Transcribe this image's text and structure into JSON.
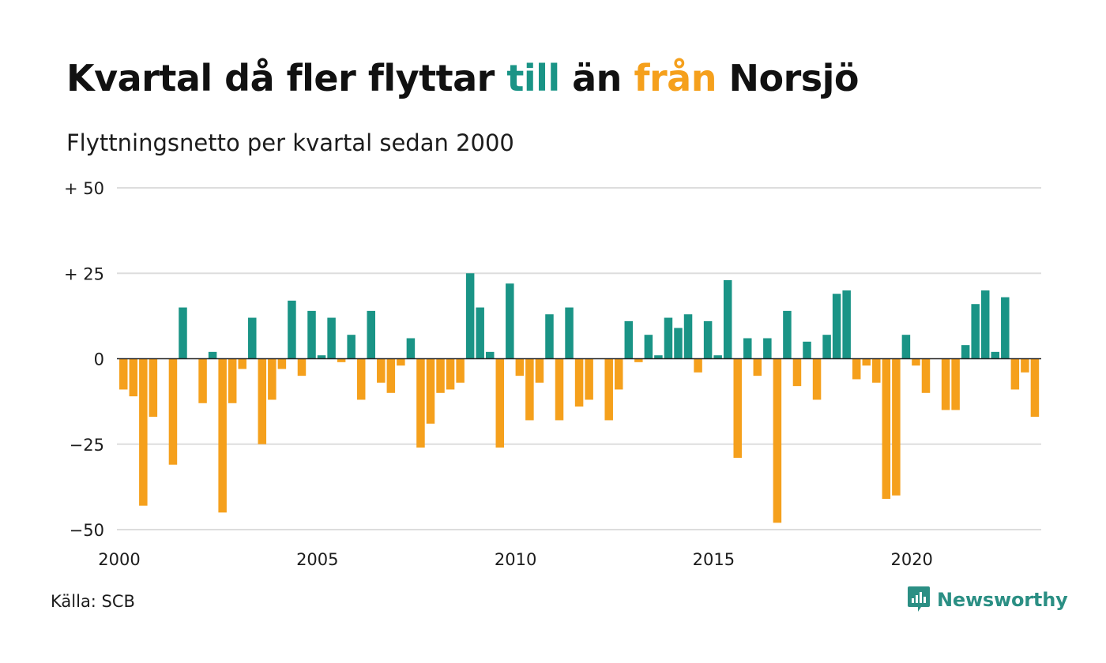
{
  "title": {
    "part1": "Kvartal då fler flyttar ",
    "highlight_in": "till",
    "part2": " än ",
    "highlight_out": "från",
    "part3": " Norsjö"
  },
  "subtitle": "Flyttningsnetto per kvartal sedan 2000",
  "source": "Källa: SCB",
  "brand": {
    "name": "Newsworthy",
    "icon": "newsworthy-chart-bubble-icon"
  },
  "colors": {
    "positive": "#1a9486",
    "negative": "#f5a01c",
    "grid": "#dddddd",
    "zero": "#222222"
  },
  "chart_data": {
    "type": "bar",
    "xlabel": "",
    "ylabel": "",
    "ylim": [
      -50,
      50
    ],
    "yticks": [
      {
        "value": 50,
        "label": "+ 50"
      },
      {
        "value": 25,
        "label": "+ 25"
      },
      {
        "value": 0,
        "label": "0"
      },
      {
        "value": -25,
        "label": "−25"
      },
      {
        "value": -50,
        "label": "−50"
      }
    ],
    "xticks": [
      {
        "value": 2000,
        "label": "2000"
      },
      {
        "value": 2005,
        "label": "2005"
      },
      {
        "value": 2010,
        "label": "2010"
      },
      {
        "value": 2015,
        "label": "2015"
      },
      {
        "value": 2020,
        "label": "2020"
      }
    ],
    "grid": true,
    "start_year": 2000,
    "values": [
      -9,
      -11,
      -43,
      -17,
      0,
      -31,
      15,
      0,
      -13,
      2,
      -45,
      -13,
      -3,
      12,
      -25,
      -12,
      -3,
      17,
      -5,
      14,
      1,
      12,
      -1,
      7,
      -12,
      14,
      -7,
      -10,
      -2,
      6,
      -26,
      -19,
      -10,
      -9,
      -7,
      25,
      15,
      2,
      -26,
      22,
      -5,
      -18,
      -7,
      13,
      -18,
      15,
      -14,
      -12,
      0,
      -18,
      -9,
      11,
      -1,
      7,
      1,
      12,
      9,
      13,
      -4,
      11,
      1,
      23,
      -29,
      6,
      -5,
      6,
      -48,
      14,
      -8,
      5,
      -12,
      7,
      19,
      20,
      -6,
      -2,
      -7,
      -41,
      -40,
      7,
      -2,
      -10,
      0,
      -15,
      -15,
      4,
      16,
      20,
      2,
      18,
      -9,
      -4,
      -17
    ]
  }
}
